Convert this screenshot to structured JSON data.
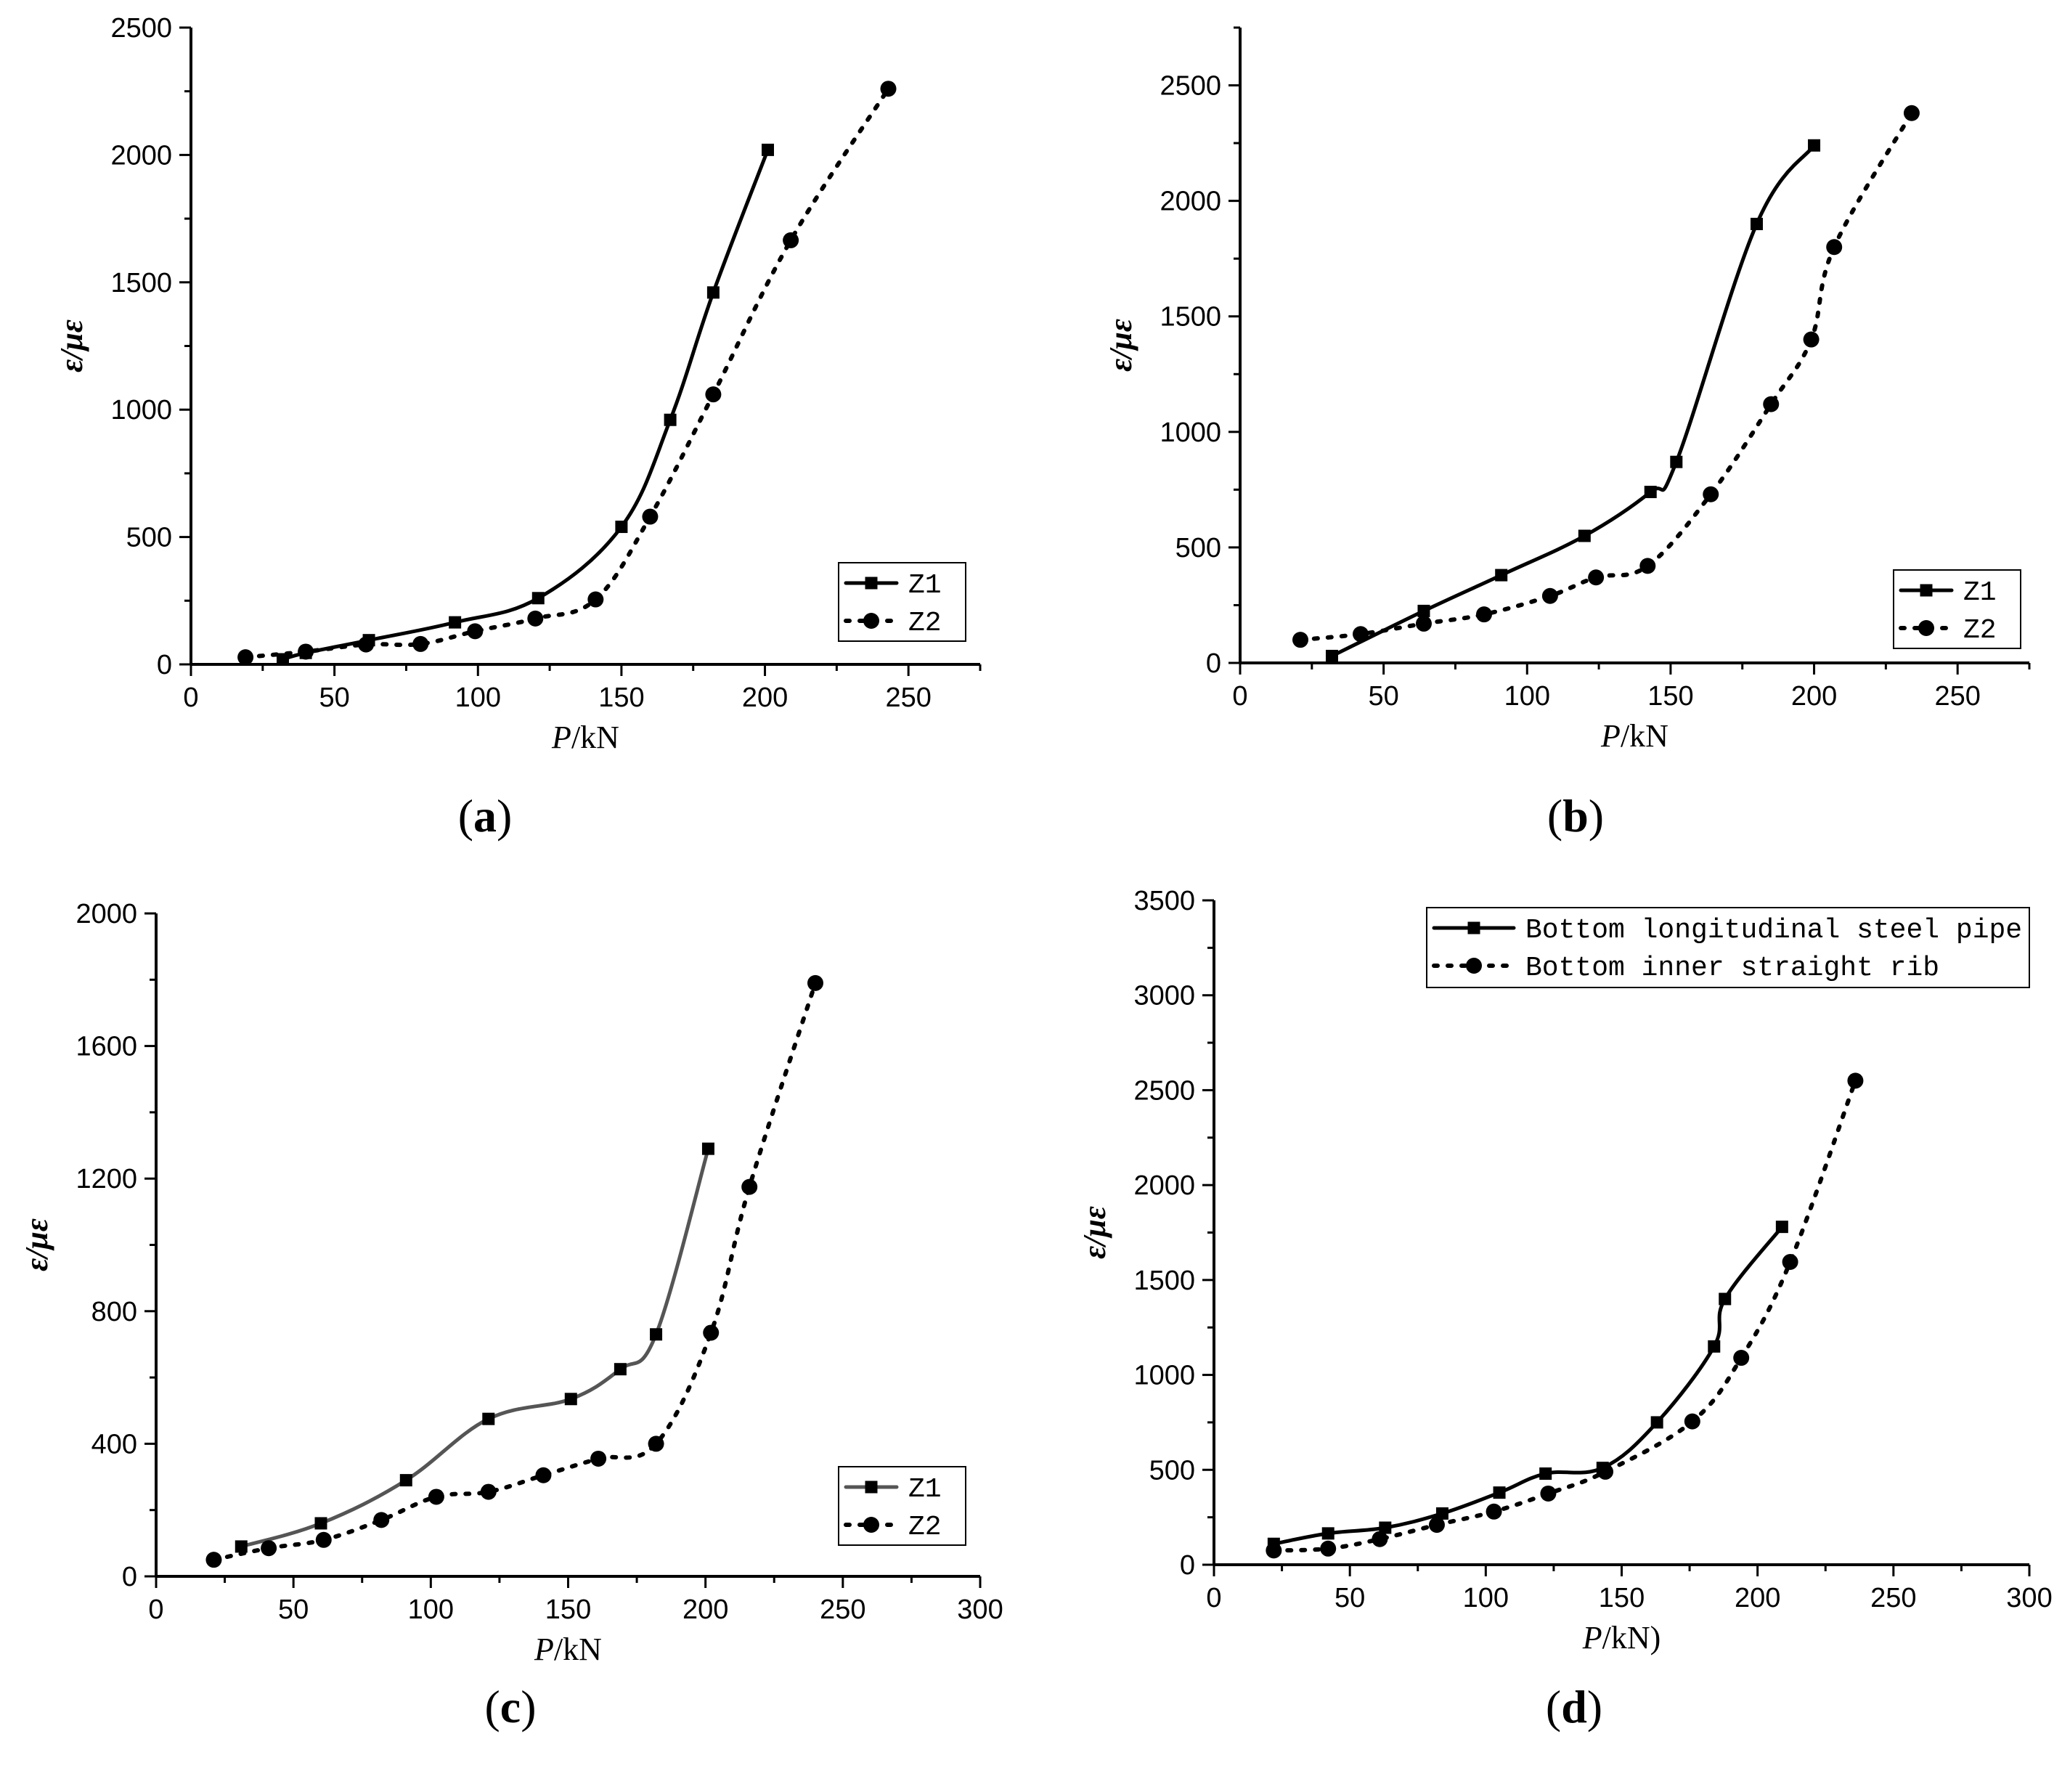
{
  "chart_data": [
    {
      "type": "line",
      "panel": "a",
      "caption_letter": "a",
      "xlabel": "P",
      "xlabel_unit": "/kN",
      "ylabel": "ε/με",
      "xlim": [
        0,
        275
      ],
      "ylim": [
        0,
        2500
      ],
      "xticks": [
        0,
        50,
        100,
        150,
        200,
        250
      ],
      "yticks": [
        0,
        500,
        1000,
        1500,
        2000,
        2500
      ],
      "legend": "bottom-right",
      "series": [
        {
          "name": "Z1",
          "style": "solid",
          "marker": "square",
          "color": "#000000",
          "x": [
            32,
            40,
            62,
            92,
            121,
            150,
            167,
            182,
            201
          ],
          "y": [
            20,
            45,
            95,
            165,
            260,
            540,
            960,
            1460,
            2020
          ]
        },
        {
          "name": "Z2",
          "style": "dotted",
          "marker": "circle",
          "color": "#000000",
          "x": [
            19,
            40,
            61,
            80,
            99,
            120,
            141,
            160,
            182,
            209,
            243
          ],
          "y": [
            28,
            50,
            78,
            80,
            130,
            180,
            255,
            580,
            1060,
            1665,
            2260
          ]
        }
      ]
    },
    {
      "type": "line",
      "panel": "b",
      "caption_letter": "b",
      "xlabel": "P",
      "xlabel_unit": "/kN",
      "ylabel": "ε/με",
      "xlim": [
        0,
        275
      ],
      "ylim": [
        0,
        2750
      ],
      "xticks": [
        0,
        50,
        100,
        150,
        200,
        250
      ],
      "yticks": [
        0,
        500,
        1000,
        1500,
        2000,
        2500
      ],
      "legend": "bottom-right",
      "series": [
        {
          "name": "Z1",
          "style": "solid",
          "marker": "square",
          "color": "#000000",
          "x": [
            32,
            64,
            91,
            120,
            143,
            152,
            180,
            200
          ],
          "y": [
            30,
            225,
            380,
            550,
            740,
            870,
            1900,
            2240
          ]
        },
        {
          "name": "Z2",
          "style": "dotted",
          "marker": "circle",
          "color": "#000000",
          "x": [
            21,
            42,
            64,
            85,
            108,
            124,
            142,
            164,
            185,
            199,
            207,
            234
          ],
          "y": [
            100,
            125,
            170,
            210,
            290,
            370,
            420,
            730,
            1120,
            1400,
            1800,
            2380
          ]
        }
      ]
    },
    {
      "type": "line",
      "panel": "c",
      "caption_letter": "c",
      "xlabel": "P",
      "xlabel_unit": "/kN",
      "ylabel": "ε/με",
      "xlim": [
        0,
        300
      ],
      "ylim": [
        0,
        2000
      ],
      "xticks": [
        0,
        50,
        100,
        150,
        200,
        250,
        300
      ],
      "yticks": [
        0,
        400,
        800,
        1200,
        1600,
        2000
      ],
      "legend": "bottom-right",
      "series": [
        {
          "name": "Z1",
          "style": "solid",
          "marker": "square",
          "color": "#555555",
          "x": [
            31,
            60,
            91,
            121,
            151,
            169,
            182,
            201
          ],
          "y": [
            90,
            160,
            290,
            475,
            535,
            625,
            730,
            1290
          ]
        },
        {
          "name": "Z2",
          "style": "dotted",
          "marker": "circle",
          "color": "#000000",
          "x": [
            21,
            41,
            61,
            82,
            102,
            121,
            141,
            161,
            182,
            202,
            216,
            240
          ],
          "y": [
            50,
            85,
            110,
            170,
            240,
            255,
            305,
            355,
            400,
            735,
            1175,
            1790
          ]
        }
      ]
    },
    {
      "type": "line",
      "panel": "d",
      "caption_letter": "d",
      "xlabel": "P",
      "xlabel_unit": "/kN)",
      "ylabel": "ε/με",
      "xlim": [
        0,
        300
      ],
      "ylim": [
        0,
        3500
      ],
      "xticks": [
        0,
        50,
        100,
        150,
        200,
        250,
        300
      ],
      "yticks": [
        0,
        500,
        1000,
        1500,
        2000,
        2500,
        3000,
        3500
      ],
      "legend": "top-right",
      "series": [
        {
          "name": "Bottom longitudinal steel pipe",
          "style": "solid",
          "marker": "square",
          "color": "#000000",
          "x": [
            22,
            42,
            63,
            84,
            105,
            122,
            143,
            163,
            184,
            188,
            209
          ],
          "y": [
            110,
            165,
            195,
            270,
            380,
            480,
            510,
            750,
            1150,
            1400,
            1780
          ]
        },
        {
          "name": "Bottom inner straight rib",
          "style": "dotted",
          "marker": "circle",
          "color": "#000000",
          "x": [
            22,
            42,
            61,
            82,
            103,
            123,
            144,
            176,
            194,
            212,
            236
          ],
          "y": [
            75,
            85,
            135,
            210,
            280,
            375,
            490,
            755,
            1090,
            1595,
            2550
          ]
        }
      ]
    }
  ]
}
